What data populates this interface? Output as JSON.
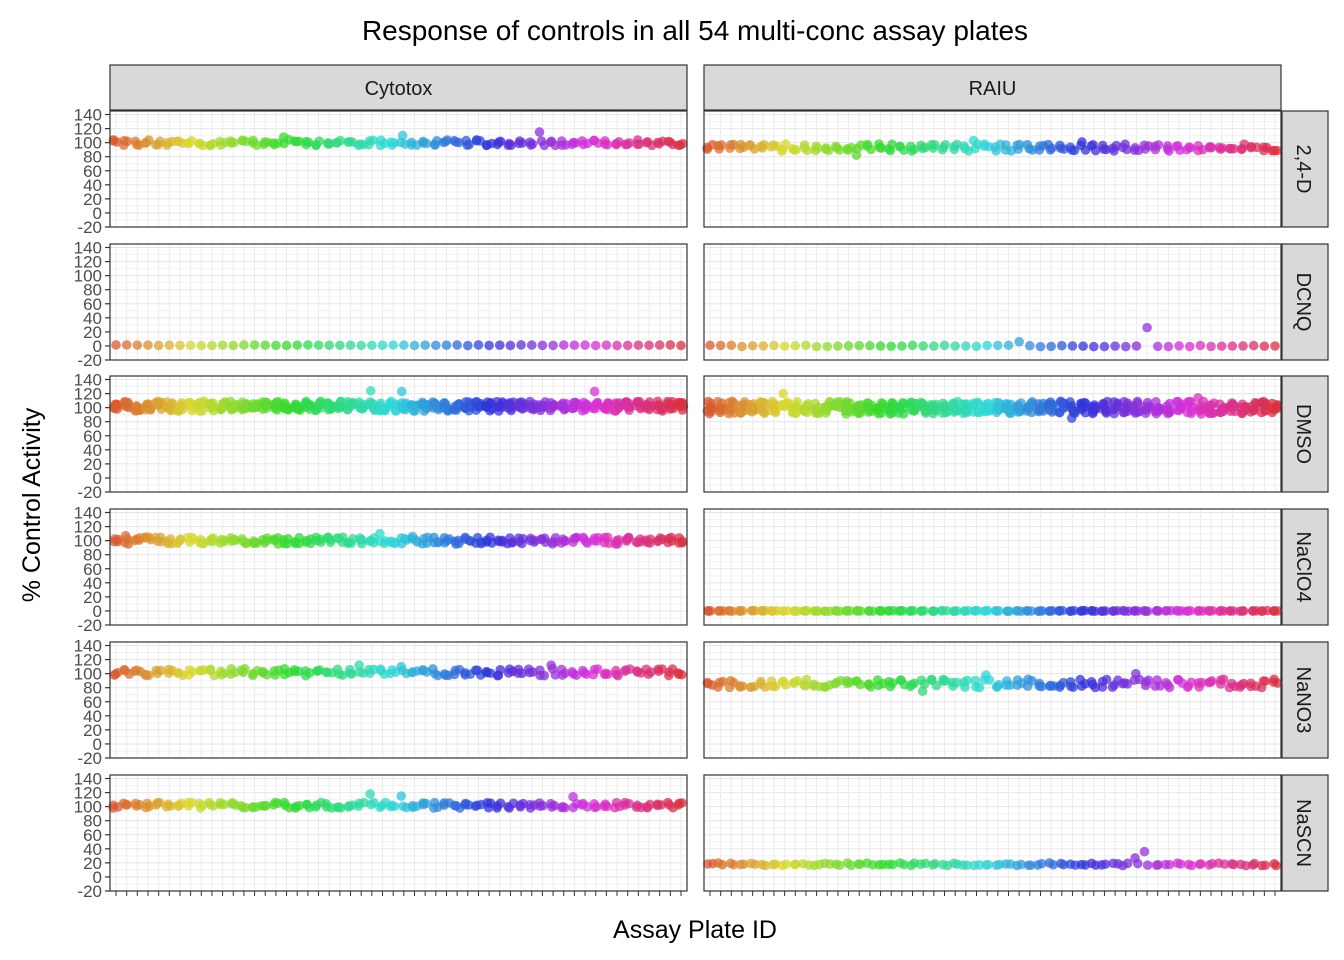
{
  "chart_data": {
    "type": "scatter",
    "title": "Response of controls in all 54 multi-conc assay plates",
    "xlabel": "Assay Plate ID",
    "ylabel": "% Control Activity",
    "ylim": [
      -20,
      145
    ],
    "yticks": [
      -20,
      0,
      20,
      40,
      60,
      80,
      100,
      120,
      140
    ],
    "n_plates": 54,
    "x_tick_labels_shown": false,
    "grid": true,
    "legend": "none",
    "theme": "bw",
    "color_scale": "hue by plate index (red → orange → green → cyan → blue → magenta → pink)",
    "facet_columns": [
      "Cytotox",
      "RAIU"
    ],
    "facet_rows": [
      "2,4-D",
      "DCNQ",
      "DMSO",
      "NaClO4",
      "NaNO3",
      "NaSCN"
    ],
    "panels": [
      {
        "column": "Cytotox",
        "row": "2,4-D",
        "points_per_plate": 3,
        "typical_value": 100,
        "spread": 4,
        "notable_points": [
          {
            "plate": 40,
            "value": 115
          },
          {
            "plate": 16,
            "value": 108
          },
          {
            "plate": 27,
            "value": 110
          }
        ]
      },
      {
        "column": "RAIU",
        "row": "2,4-D",
        "points_per_plate": 3,
        "typical_value": 93,
        "spread": 5,
        "notable_points": [
          {
            "plate": 14,
            "value": 82
          },
          {
            "plate": 25,
            "value": 103
          },
          {
            "plate": 35,
            "value": 101
          }
        ]
      },
      {
        "column": "Cytotox",
        "row": "DCNQ",
        "points_per_plate": 1,
        "typical_value": 1,
        "spread": 0.5,
        "notable_points": []
      },
      {
        "column": "RAIU",
        "row": "DCNQ",
        "points_per_plate": 1,
        "typical_value": 0,
        "spread": 1,
        "notable_points": [
          {
            "plate": 41,
            "value": 26
          },
          {
            "plate": 29,
            "value": 6
          }
        ]
      },
      {
        "column": "Cytotox",
        "row": "DMSO",
        "points_per_plate": 8,
        "typical_value": 102,
        "spread": 7,
        "notable_points": [
          {
            "plate": 24,
            "value": 124
          },
          {
            "plate": 27,
            "value": 123
          },
          {
            "plate": 45,
            "value": 123
          }
        ]
      },
      {
        "column": "RAIU",
        "row": "DMSO",
        "points_per_plate": 8,
        "typical_value": 100,
        "spread": 9,
        "notable_points": [
          {
            "plate": 7,
            "value": 120
          },
          {
            "plate": 34,
            "value": 85
          },
          {
            "plate": 46,
            "value": 114
          }
        ]
      },
      {
        "column": "Cytotox",
        "row": "NaClO4",
        "points_per_plate": 4,
        "typical_value": 100,
        "spread": 5,
        "notable_points": [
          {
            "plate": 25,
            "value": 110
          },
          {
            "plate": 28,
            "value": 106
          },
          {
            "plate": 1,
            "value": 107
          }
        ]
      },
      {
        "column": "RAIU",
        "row": "NaClO4",
        "points_per_plate": 3,
        "typical_value": 0,
        "spread": 0.5,
        "notable_points": []
      },
      {
        "column": "Cytotox",
        "row": "NaNO3",
        "points_per_plate": 3,
        "typical_value": 102,
        "spread": 5,
        "notable_points": [
          {
            "plate": 23,
            "value": 112
          },
          {
            "plate": 27,
            "value": 110
          },
          {
            "plate": 41,
            "value": 112
          }
        ]
      },
      {
        "column": "RAIU",
        "row": "NaNO3",
        "points_per_plate": 3,
        "typical_value": 86,
        "spread": 6,
        "notable_points": [
          {
            "plate": 40,
            "value": 100
          },
          {
            "plate": 20,
            "value": 75
          },
          {
            "plate": 26,
            "value": 98
          }
        ]
      },
      {
        "column": "Cytotox",
        "row": "NaSCN",
        "points_per_plate": 3,
        "typical_value": 102,
        "spread": 4,
        "notable_points": [
          {
            "plate": 24,
            "value": 118
          },
          {
            "plate": 27,
            "value": 115
          },
          {
            "plate": 43,
            "value": 114
          }
        ]
      },
      {
        "column": "RAIU",
        "row": "NaSCN",
        "points_per_plate": 2,
        "typical_value": 18,
        "spread": 2,
        "notable_points": [
          {
            "plate": 41,
            "value": 36
          },
          {
            "plate": 40,
            "value": 27
          }
        ]
      }
    ]
  }
}
